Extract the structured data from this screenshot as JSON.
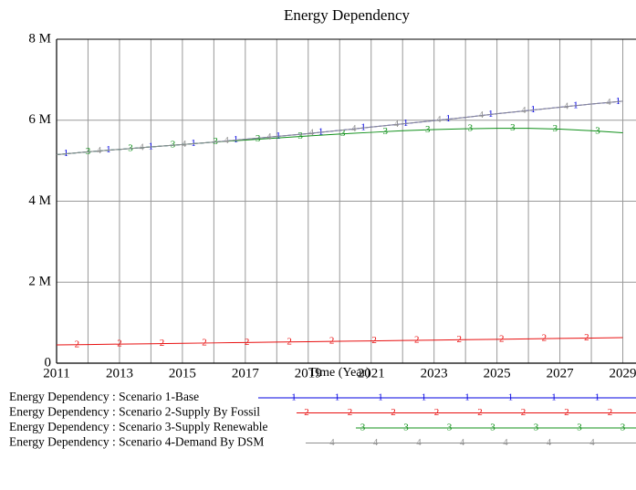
{
  "chart_data": {
    "type": "line",
    "title": "Energy Dependency",
    "x_label": "Time (Year)",
    "x": [
      2011,
      2012,
      2013,
      2014,
      2015,
      2016,
      2017,
      2018,
      2019,
      2020,
      2021,
      2022,
      2023,
      2024,
      2025,
      2026,
      2027,
      2028,
      2029
    ],
    "xlim": [
      2011,
      2030
    ],
    "xticks": [
      2011,
      2013,
      2015,
      2017,
      2019,
      2021,
      2023,
      2025,
      2027,
      2029
    ],
    "x_minor_ticks": [
      2012,
      2014,
      2016,
      2018,
      2020,
      2022,
      2024,
      2026,
      2028
    ],
    "ylim": [
      0,
      8000000
    ],
    "yticks": [
      {
        "value": 0,
        "label": "0"
      },
      {
        "value": 2000000,
        "label": "2 M"
      },
      {
        "value": 4000000,
        "label": "4 M"
      },
      {
        "value": 6000000,
        "label": "6 M"
      },
      {
        "value": 8000000,
        "label": "8 M"
      }
    ],
    "grid": true,
    "series": [
      {
        "name": "Energy Dependency : Scenario 1-Base",
        "marker": "1",
        "color": "#0000e0",
        "values": [
          5150000,
          5220000,
          5280000,
          5340000,
          5400000,
          5460000,
          5530000,
          5600000,
          5670000,
          5750000,
          5830000,
          5910000,
          5990000,
          6070000,
          6160000,
          6240000,
          6320000,
          6400000,
          6470000
        ]
      },
      {
        "name": "Energy Dependency : Scenario 2-Supply By Fossil",
        "marker": "2",
        "color": "#e81010",
        "values": [
          450000,
          460000,
          470000,
          480000,
          490000,
          500000,
          510000,
          520000,
          530000,
          540000,
          550000,
          560000,
          570000,
          580000,
          590000,
          600000,
          610000,
          620000,
          630000
        ]
      },
      {
        "name": "Energy Dependency : Scenario 3-Supply Renewable",
        "marker": "3",
        "color": "#10901a",
        "values": [
          5150000,
          5220000,
          5280000,
          5340000,
          5400000,
          5460000,
          5510000,
          5560000,
          5610000,
          5660000,
          5700000,
          5740000,
          5770000,
          5790000,
          5800000,
          5800000,
          5780000,
          5740000,
          5690000
        ]
      },
      {
        "name": "Energy Dependency : Scenario 4-Demand By DSM",
        "marker": "4",
        "color": "#909090",
        "values": [
          5150000,
          5220000,
          5280000,
          5340000,
          5400000,
          5460000,
          5530000,
          5600000,
          5670000,
          5750000,
          5830000,
          5910000,
          5990000,
          6070000,
          6160000,
          6240000,
          6320000,
          6400000,
          6470000
        ]
      }
    ]
  }
}
